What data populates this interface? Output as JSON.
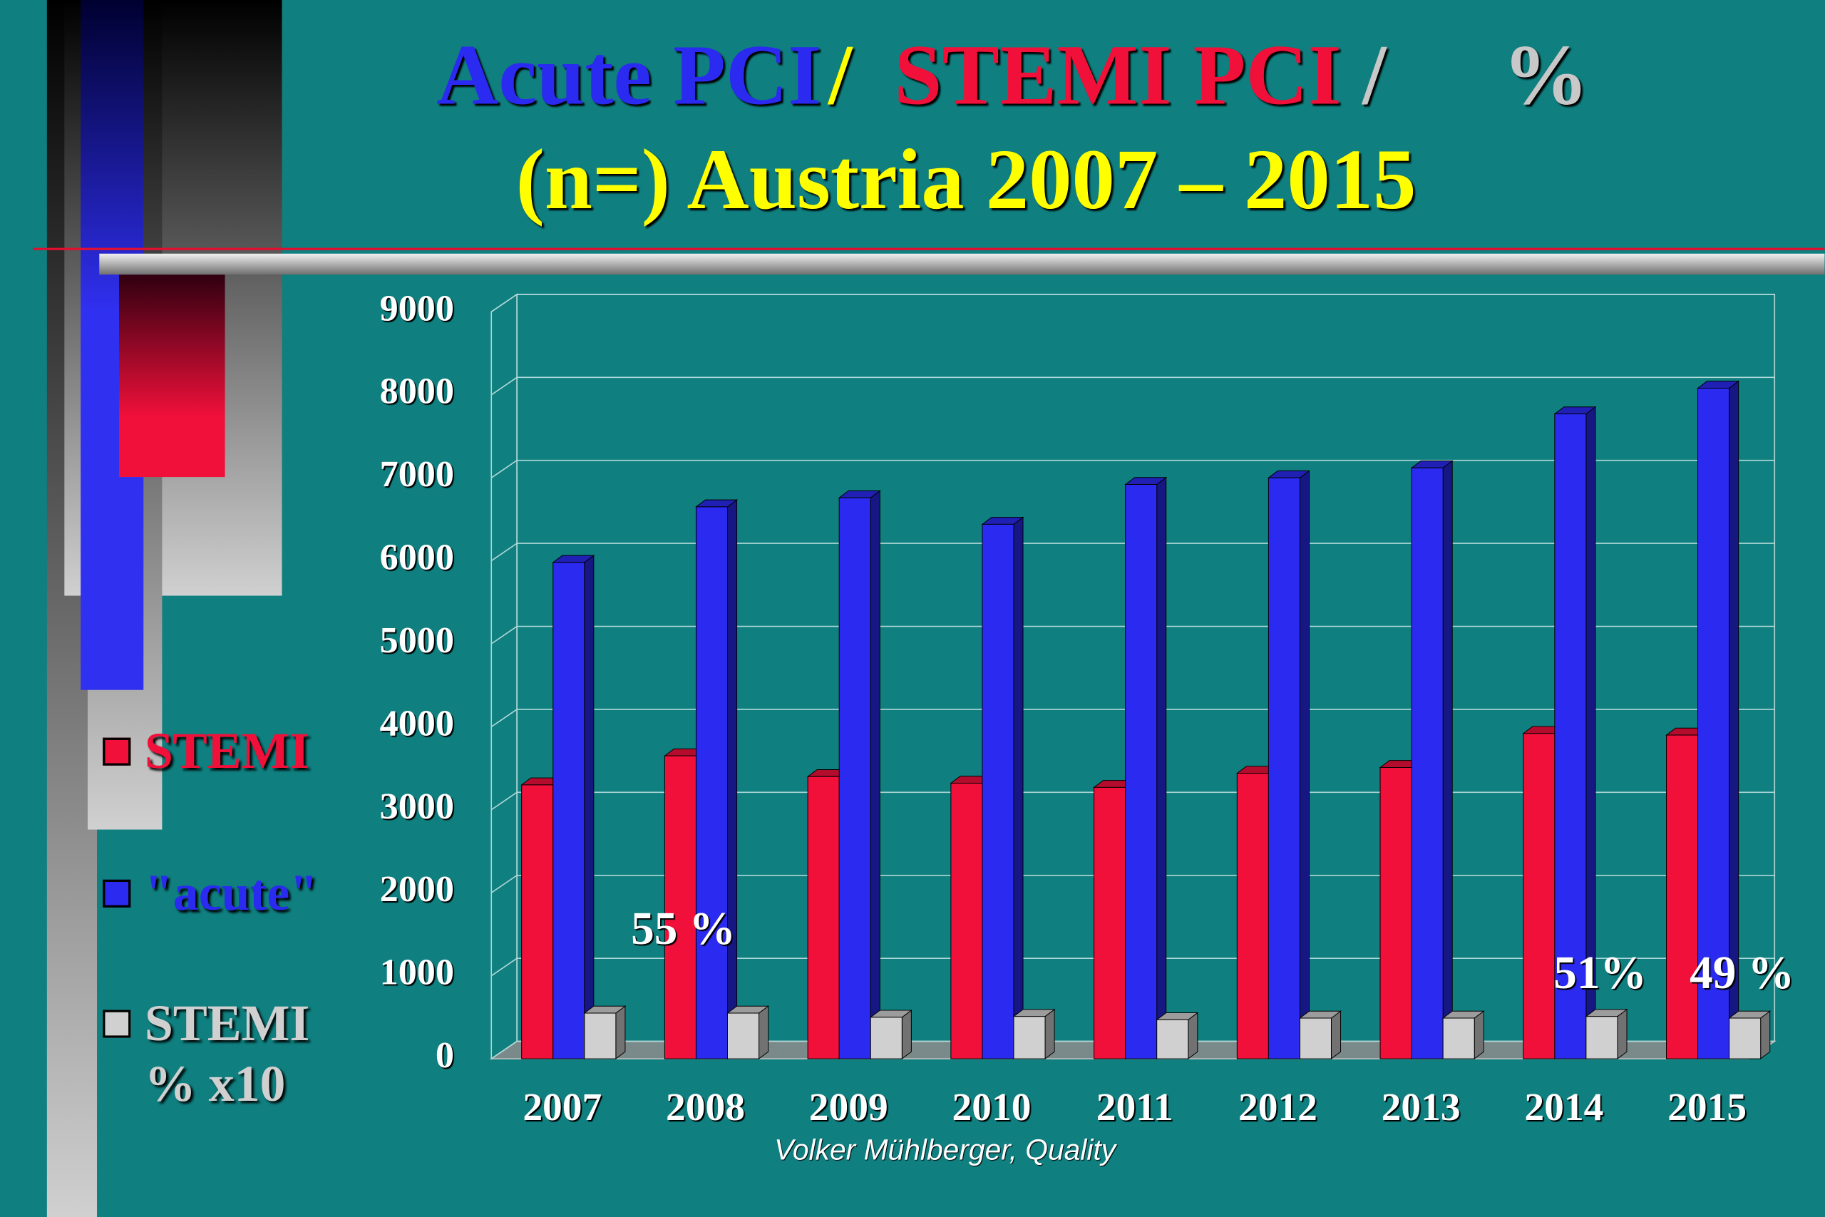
{
  "chart_data": {
    "type": "bar",
    "title_parts": [
      {
        "text": "Acute PCI",
        "color": "#2a2af0"
      },
      {
        "text": "/",
        "color": "#ffff00"
      },
      {
        "text": "STEMI  PCI",
        "color": "#f0103a"
      },
      {
        "text": "/",
        "color": "#c8c8c8"
      },
      {
        "text": "%",
        "color": "#c8c8c8"
      }
    ],
    "subtitle": "(n=) Austria 2007 – 2015",
    "subtitle_color": "#ffff00",
    "categories": [
      "2007",
      "2008",
      "2009",
      "2010",
      "2011",
      "2012",
      "2013",
      "2014",
      "2015"
    ],
    "series": [
      {
        "name": "STEMI",
        "color": "#f0103a",
        "values": [
          3300,
          3650,
          3400,
          3320,
          3270,
          3440,
          3510,
          3920,
          3900
        ]
      },
      {
        "name": "\"acute\"",
        "color": "#2a2af0",
        "values": [
          5980,
          6650,
          6760,
          6440,
          6920,
          7000,
          7120,
          7770,
          8080
        ]
      },
      {
        "name": "STEMI % x10",
        "color": "#d0d0d0",
        "values": [
          550,
          550,
          500,
          510,
          470,
          490,
          490,
          510,
          490
        ]
      }
    ],
    "ylim": [
      0,
      9000
    ],
    "yticks": [
      0,
      1000,
      2000,
      3000,
      4000,
      5000,
      6000,
      7000,
      8000,
      9000
    ],
    "grid": true,
    "annotations": [
      "55 %",
      "51%",
      "49 %"
    ],
    "footer": "Volker Mühlberger, Quality"
  }
}
